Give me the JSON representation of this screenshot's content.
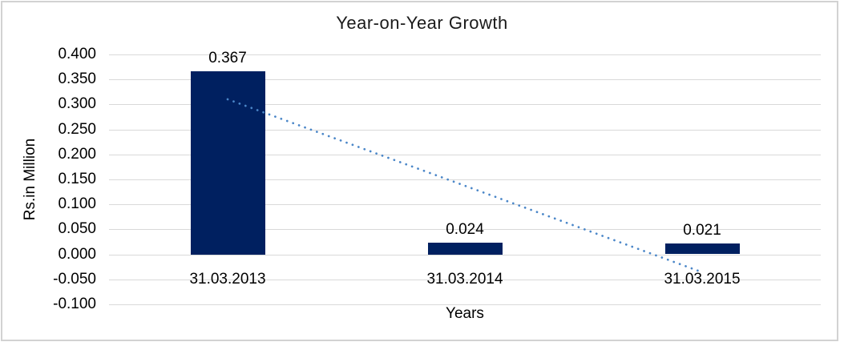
{
  "chart_data": {
    "type": "bar",
    "title": "Year-on-Year Growth",
    "xlabel": "Years",
    "ylabel": "Rs.in Million",
    "categories": [
      "31.03.2013",
      "31.03.2014",
      "31.03.2015"
    ],
    "values": [
      0.367,
      0.024,
      0.021
    ],
    "data_labels": [
      "0.367",
      "0.024",
      "0.021"
    ],
    "ylim": [
      -0.1,
      0.4
    ],
    "ytick_step": 0.05,
    "yticks": [
      "0.400",
      "0.350",
      "0.300",
      "0.250",
      "0.200",
      "0.150",
      "0.100",
      "0.050",
      "0.000",
      "-0.050",
      "-0.100"
    ],
    "grid": true,
    "legend_position": "none",
    "trendline": {
      "type": "linear",
      "style": "dotted",
      "series": "values",
      "endpoints_value": [
        0.31,
        -0.036
      ]
    },
    "colors": {
      "bar": "#002060",
      "trendline": "#4a86c8",
      "gridline": "#d9d9d9",
      "frame_border": "#d2d2d2",
      "text": "#000000",
      "background": "#ffffff"
    }
  }
}
